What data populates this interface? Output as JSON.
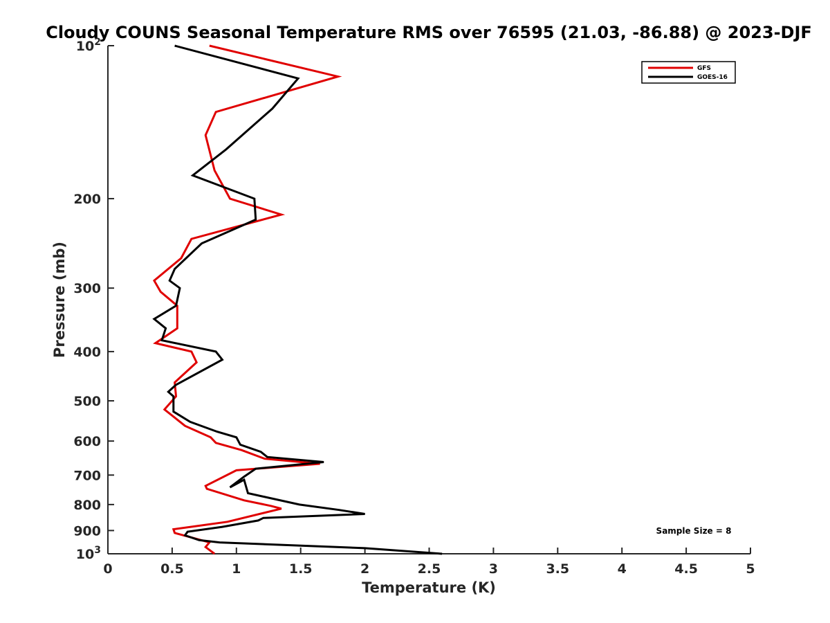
{
  "chart_data": {
    "type": "line",
    "title": "Cloudy COUNS Seasonal Temperature RMS over 76595 (21.03, -86.88) @ 2023-DJF",
    "xlabel": "Temperature (K)",
    "ylabel": "Pressure (mb)",
    "xlim": [
      0,
      5
    ],
    "ylim": [
      100,
      1000
    ],
    "y_scale": "log",
    "y_reversed": true,
    "grid": false,
    "legend_position": "top-right",
    "x_ticks": [
      "0",
      "0.5",
      "1",
      "1.5",
      "2",
      "2.5",
      "3",
      "3.5",
      "4",
      "4.5",
      "5"
    ],
    "y_ticks": [
      {
        "value": 100,
        "base": "10",
        "exp": "2"
      },
      {
        "value": 200,
        "base": "200",
        "exp": ""
      },
      {
        "value": 300,
        "base": "300",
        "exp": ""
      },
      {
        "value": 400,
        "base": "400",
        "exp": ""
      },
      {
        "value": 500,
        "base": "500",
        "exp": ""
      },
      {
        "value": 600,
        "base": "600",
        "exp": ""
      },
      {
        "value": 700,
        "base": "700",
        "exp": ""
      },
      {
        "value": 800,
        "base": "800",
        "exp": ""
      },
      {
        "value": 900,
        "base": "900",
        "exp": ""
      },
      {
        "value": 1000,
        "base": "10",
        "exp": "3"
      }
    ],
    "annotation": "Sample Size = 8",
    "series": [
      {
        "name": "GFS",
        "color": "#e00000",
        "points": [
          [
            0.79,
            100
          ],
          [
            1.79,
            115
          ],
          [
            0.84,
            135
          ],
          [
            0.76,
            150
          ],
          [
            0.83,
            176
          ],
          [
            0.95,
            200
          ],
          [
            1.35,
            215
          ],
          [
            0.65,
            240
          ],
          [
            0.57,
            262
          ],
          [
            0.36,
            290
          ],
          [
            0.41,
            305
          ],
          [
            0.54,
            325
          ],
          [
            0.54,
            360
          ],
          [
            0.37,
            385
          ],
          [
            0.65,
            400
          ],
          [
            0.69,
            420
          ],
          [
            0.52,
            460
          ],
          [
            0.53,
            490
          ],
          [
            0.44,
            520
          ],
          [
            0.6,
            560
          ],
          [
            0.8,
            590
          ],
          [
            0.84,
            605
          ],
          [
            1.04,
            625
          ],
          [
            1.22,
            650
          ],
          [
            1.65,
            665
          ],
          [
            1.0,
            685
          ],
          [
            0.76,
            735
          ],
          [
            0.77,
            745
          ],
          [
            1.06,
            785
          ],
          [
            1.27,
            805
          ],
          [
            1.35,
            815
          ],
          [
            0.93,
            865
          ],
          [
            0.51,
            895
          ],
          [
            0.52,
            910
          ],
          [
            0.66,
            930
          ],
          [
            0.79,
            950
          ],
          [
            0.76,
            970
          ],
          [
            0.83,
            1000
          ]
        ]
      },
      {
        "name": "GOES-16",
        "color": "#000000",
        "points": [
          [
            0.52,
            100
          ],
          [
            1.48,
            116
          ],
          [
            1.28,
            133
          ],
          [
            0.92,
            160
          ],
          [
            0.66,
            180
          ],
          [
            1.14,
            200
          ],
          [
            1.15,
            220
          ],
          [
            0.73,
            245
          ],
          [
            0.52,
            275
          ],
          [
            0.48,
            290
          ],
          [
            0.56,
            300
          ],
          [
            0.53,
            325
          ],
          [
            0.36,
            345
          ],
          [
            0.45,
            360
          ],
          [
            0.42,
            380
          ],
          [
            0.84,
            400
          ],
          [
            0.89,
            415
          ],
          [
            0.53,
            465
          ],
          [
            0.47,
            480
          ],
          [
            0.51,
            490
          ],
          [
            0.51,
            525
          ],
          [
            0.64,
            550
          ],
          [
            0.85,
            575
          ],
          [
            1.0,
            590
          ],
          [
            1.03,
            610
          ],
          [
            1.19,
            630
          ],
          [
            1.24,
            645
          ],
          [
            1.68,
            660
          ],
          [
            1.15,
            680
          ],
          [
            1.06,
            705
          ],
          [
            0.95,
            740
          ],
          [
            1.06,
            715
          ],
          [
            1.09,
            760
          ],
          [
            1.49,
            800
          ],
          [
            1.8,
            820
          ],
          [
            2.0,
            835
          ],
          [
            1.21,
            850
          ],
          [
            1.17,
            860
          ],
          [
            0.89,
            885
          ],
          [
            0.62,
            905
          ],
          [
            0.6,
            920
          ],
          [
            0.71,
            940
          ],
          [
            0.87,
            950
          ],
          [
            2.0,
            975
          ],
          [
            2.6,
            1000
          ]
        ]
      }
    ]
  }
}
